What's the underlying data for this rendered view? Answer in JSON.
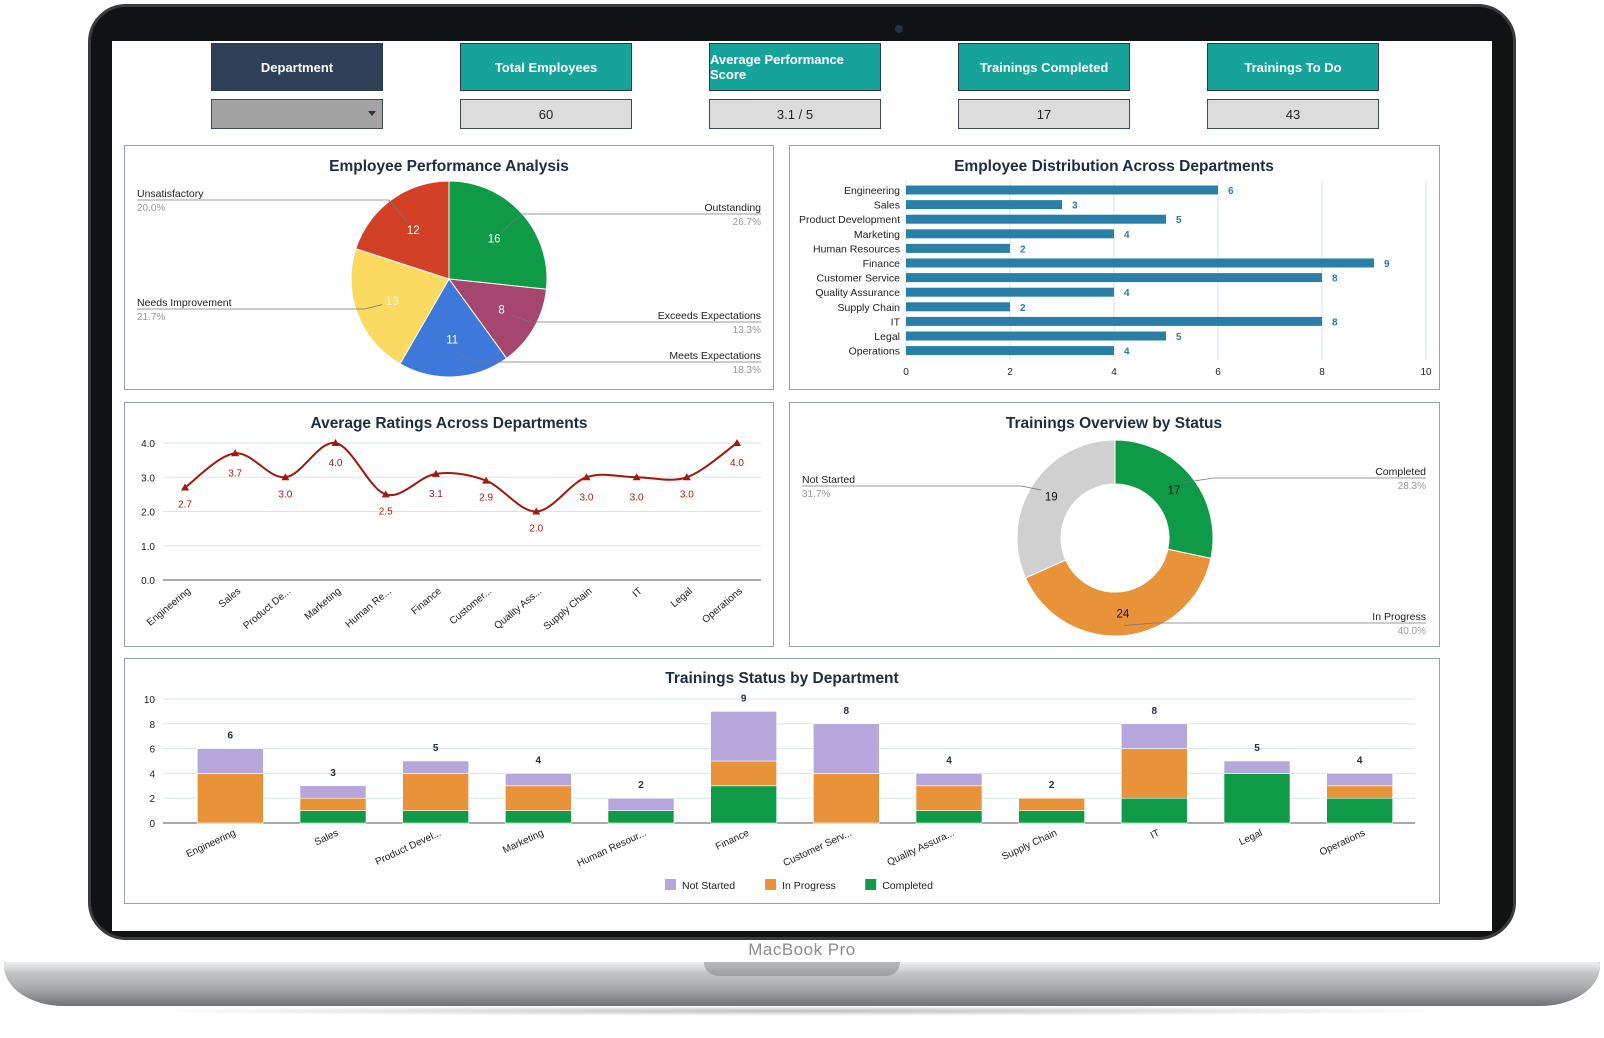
{
  "device": {
    "brand_label": "MacBook Pro"
  },
  "kpis": {
    "department": {
      "title": "Department",
      "value": ""
    },
    "total_employees": {
      "title": "Total Employees",
      "value": "60"
    },
    "avg_performance": {
      "title": "Average Performance Score",
      "value": "3.1 / 5"
    },
    "trainings_completed": {
      "title": "Trainings Completed",
      "value": "17"
    },
    "trainings_todo": {
      "title": "Trainings To Do",
      "value": "43"
    }
  },
  "colors": {
    "navy": "#2e4057",
    "teal": "#16a39a",
    "bar_blue": "#2a7fa8",
    "line_red": "#9e1a0c",
    "purple": "#b5a6dc",
    "orange": "#e8923a",
    "green": "#0f9a48",
    "grey": "#d0d0d0"
  },
  "chart_data": [
    {
      "id": "performance",
      "type": "pie",
      "title": "Employee Performance Analysis",
      "slices": [
        {
          "name": "Outstanding",
          "value": 16,
          "percent": "26.7%",
          "color": "#0f9a48"
        },
        {
          "name": "Exceeds Expectations",
          "value": 8,
          "percent": "13.3%",
          "color": "#a6466f"
        },
        {
          "name": "Meets Expectations",
          "value": 11,
          "percent": "18.3%",
          "color": "#3f78db"
        },
        {
          "name": "Needs Improvement",
          "value": 13,
          "percent": "21.7%",
          "color": "#fcd961"
        },
        {
          "name": "Unsatisfactory",
          "value": 12,
          "percent": "20.0%",
          "color": "#d24126"
        }
      ]
    },
    {
      "id": "distribution",
      "type": "bar",
      "orientation": "horizontal",
      "title": "Employee Distribution Across Departments",
      "categories": [
        "Engineering",
        "Sales",
        "Product Development",
        "Marketing",
        "Human Resources",
        "Finance",
        "Customer Service",
        "Quality Assurance",
        "Supply Chain",
        "IT",
        "Legal",
        "Operations"
      ],
      "values": [
        6,
        3,
        5,
        4,
        2,
        9,
        8,
        4,
        2,
        8,
        5,
        4
      ],
      "xlim": [
        0,
        10
      ],
      "xticks": [
        "0",
        "2",
        "4",
        "6",
        "8",
        "10"
      ],
      "grid": true
    },
    {
      "id": "ratings",
      "type": "line",
      "title": "Average Ratings Across Departments",
      "categories": [
        "Engineering",
        "Sales",
        "Product De...",
        "Marketing",
        "Human Re...",
        "Finance",
        "Customer...",
        "Quality Ass...",
        "Supply Chain",
        "IT",
        "Legal",
        "Operations"
      ],
      "values": [
        2.7,
        3.7,
        3.0,
        4.0,
        2.5,
        3.1,
        2.9,
        2.0,
        3.0,
        3.0,
        3.0,
        4.0
      ],
      "value_labels": [
        "2.7",
        "3.7",
        "3.0",
        "4.0",
        "2.5",
        "3.1",
        "2.9",
        "2.0",
        "3.0",
        "3.0",
        "3.0",
        "4.0"
      ],
      "ylim": [
        0,
        4
      ],
      "yticks": [
        "0.0",
        "1.0",
        "2.0",
        "3.0",
        "4.0"
      ],
      "grid": true
    },
    {
      "id": "training_overview",
      "type": "pie",
      "subtype": "donut",
      "title": "Trainings Overview by Status",
      "slices": [
        {
          "name": "Completed",
          "value": 17,
          "percent": "28.3%",
          "color": "#0f9a48"
        },
        {
          "name": "In Progress",
          "value": 24,
          "percent": "40.0%",
          "color": "#e8923a"
        },
        {
          "name": "Not Started",
          "value": 19,
          "percent": "31.7%",
          "color": "#d0d0d0"
        }
      ]
    },
    {
      "id": "training_status",
      "type": "bar",
      "stacked": true,
      "title": "Trainings Status by Department",
      "categories": [
        "Engineering",
        "Sales",
        "Product Devel...",
        "Marketing",
        "Human Resour...",
        "Finance",
        "Customer Serv...",
        "Quality Assura...",
        "Supply Chain",
        "IT",
        "Legal",
        "Operations"
      ],
      "series": [
        {
          "name": "Completed",
          "values": [
            0,
            1,
            1,
            1,
            1,
            3,
            0,
            1,
            1,
            2,
            4,
            2
          ],
          "color": "#0f9a48"
        },
        {
          "name": "In Progress",
          "values": [
            4,
            1,
            3,
            2,
            0,
            2,
            4,
            2,
            1,
            4,
            0,
            1
          ],
          "color": "#e8923a"
        },
        {
          "name": "Not Started",
          "values": [
            2,
            1,
            1,
            1,
            1,
            4,
            4,
            1,
            0,
            2,
            1,
            1
          ],
          "color": "#b5a6dc"
        }
      ],
      "totals": [
        "6",
        "3",
        "5",
        "4",
        "2",
        "9",
        "8",
        "4",
        "2",
        "8",
        "5",
        "4"
      ],
      "ylim": [
        0,
        10
      ],
      "yticks": [
        "0",
        "2",
        "4",
        "6",
        "8",
        "10"
      ],
      "legend": [
        "Not Started",
        "In Progress",
        "Completed"
      ],
      "legend_position": "bottom",
      "grid": true
    }
  ]
}
